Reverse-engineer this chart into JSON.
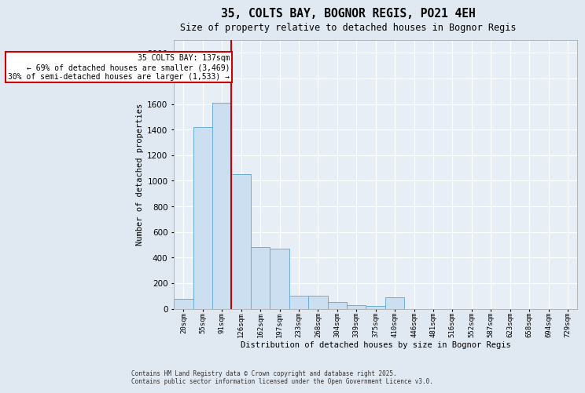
{
  "title1": "35, COLTS BAY, BOGNOR REGIS, PO21 4EH",
  "title2": "Size of property relative to detached houses in Bognor Regis",
  "xlabel": "Distribution of detached houses by size in Bognor Regis",
  "ylabel": "Number of detached properties",
  "bins": [
    "20sqm",
    "55sqm",
    "91sqm",
    "126sqm",
    "162sqm",
    "197sqm",
    "233sqm",
    "268sqm",
    "304sqm",
    "339sqm",
    "375sqm",
    "410sqm",
    "446sqm",
    "481sqm",
    "516sqm",
    "552sqm",
    "587sqm",
    "623sqm",
    "658sqm",
    "694sqm",
    "729sqm"
  ],
  "counts": [
    75,
    1420,
    1610,
    1050,
    480,
    470,
    100,
    100,
    50,
    25,
    20,
    90,
    0,
    0,
    0,
    0,
    0,
    0,
    0,
    0,
    0
  ],
  "bar_color": "#ccdff0",
  "bar_edge_color": "#6aaed6",
  "vline_pos": 2.5,
  "vline_color": "#cc0000",
  "annotation_text": "35 COLTS BAY: 137sqm\n← 69% of detached houses are smaller (3,469)\n30% of semi-detached houses are larger (1,533) →",
  "annotation_box_color": "#cc0000",
  "ylim": [
    0,
    2100
  ],
  "yticks": [
    0,
    200,
    400,
    600,
    800,
    1000,
    1200,
    1400,
    1600,
    1800,
    2000
  ],
  "footer": "Contains HM Land Registry data © Crown copyright and database right 2025.\nContains public sector information licensed under the Open Government Licence v3.0.",
  "bg_color": "#e0e8f2",
  "plot_bg_color": "#e8eef6"
}
